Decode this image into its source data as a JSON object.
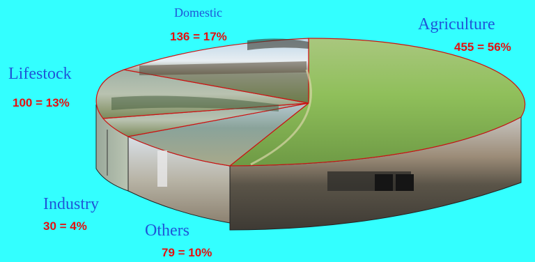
{
  "chart_data": {
    "type": "pie",
    "title": "",
    "slices": [
      {
        "label": "Agriculture",
        "value": 455,
        "percent": 56,
        "value_label": "455 = 56%"
      },
      {
        "label": "Others",
        "value": 79,
        "percent": 10,
        "value_label": "79 = 10%"
      },
      {
        "label": "Industry",
        "value": 30,
        "percent": 4,
        "value_label": "30 = 4%"
      },
      {
        "label": "Lifestock",
        "value": 100,
        "percent": 13,
        "value_label": "100 = 13%"
      },
      {
        "label": "Domestic",
        "value": 136,
        "percent": 17,
        "value_label": "136 = 17%"
      }
    ],
    "style": "3d-pie",
    "slice_fill": "photo",
    "edge_color": "#cc1111",
    "background": "#33ffff",
    "label_color": "#1f55d8",
    "value_color": "#e41010"
  }
}
